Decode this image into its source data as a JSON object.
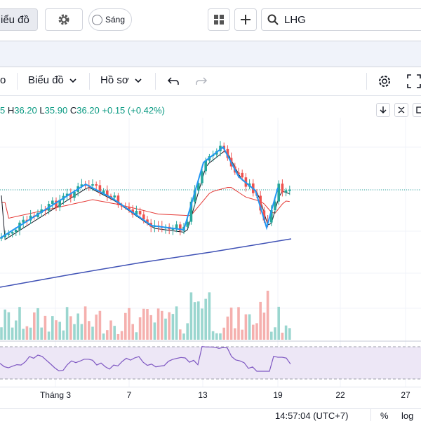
{
  "topbar": {
    "chart_tab_label": "iểu đồ",
    "theme_label": "Sáng",
    "search_value": "LHG"
  },
  "toolbar": {
    "left_partial": "o",
    "chart_menu_label": "Biểu đồ",
    "profile_menu_label": "Hồ sơ"
  },
  "legend": {
    "open_partial": "5",
    "high_label": "H",
    "high": "36.20",
    "low_label": "L",
    "low": "35.90",
    "close_label": "C",
    "close": "36.20",
    "change": "+0.15 (+0.42%)"
  },
  "time_axis": {
    "labels": [
      "Tháng 3",
      "7",
      "13",
      "19",
      "22",
      "27"
    ]
  },
  "status": {
    "clock": "14:57:04 (UTC+7)",
    "percent": "%",
    "log": "log"
  },
  "colors": {
    "up": "#26a69a",
    "down": "#ef5350",
    "pattern_line": "#2196f3",
    "ma_long": "#3f51b5",
    "ma_fast": "#131722",
    "ma_mid": "#e53935",
    "rsi": "#7e57c2"
  }
}
